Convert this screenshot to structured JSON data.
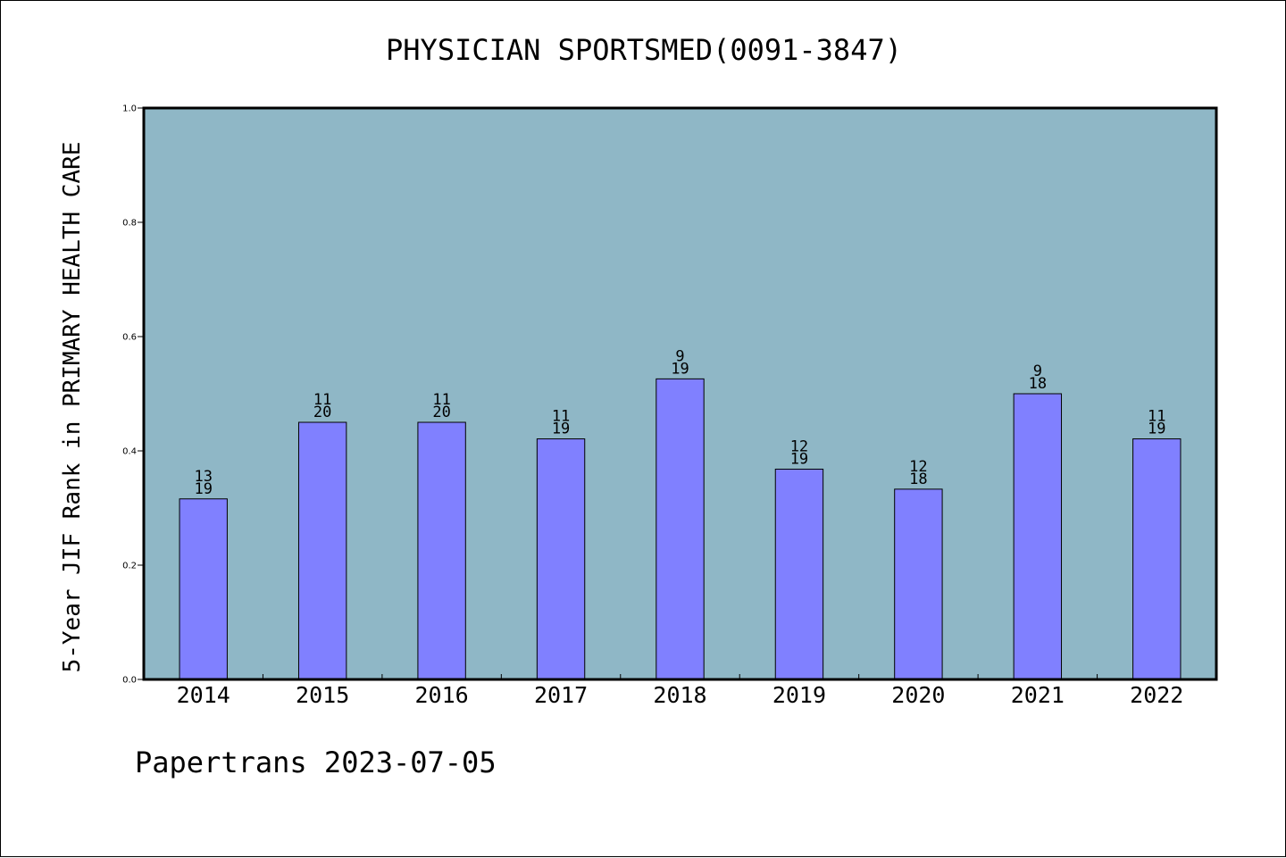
{
  "title": "PHYSICIAN SPORTSMED(0091-3847)",
  "ylabel": "5-Year JIF Rank in PRIMARY HEALTH CARE",
  "footer": "Papertrans 2023-07-05",
  "colors": {
    "plot_background": "#8fb7c6",
    "bar_fill": "#8080ff",
    "axis": "#000000"
  },
  "chart_data": {
    "type": "bar",
    "title": "PHYSICIAN SPORTSMED(0091-3847)",
    "xlabel": "",
    "ylabel": "5-Year JIF Rank in PRIMARY HEALTH CARE",
    "ylim": [
      0,
      1.0
    ],
    "yticks": [
      "0.0",
      "0.2",
      "0.4",
      "0.6",
      "0.8",
      "1.0"
    ],
    "grid": false,
    "categories": [
      "2014",
      "2015",
      "2016",
      "2017",
      "2018",
      "2019",
      "2020",
      "2021",
      "2022"
    ],
    "values": [
      0.316,
      0.45,
      0.45,
      0.421,
      0.526,
      0.368,
      0.333,
      0.5,
      0.421
    ],
    "labels": [
      {
        "top": "13",
        "bottom": "19"
      },
      {
        "top": "11",
        "bottom": "20"
      },
      {
        "top": "11",
        "bottom": "20"
      },
      {
        "top": "11",
        "bottom": "19"
      },
      {
        "top": "9",
        "bottom": "19"
      },
      {
        "top": "12",
        "bottom": "19"
      },
      {
        "top": "12",
        "bottom": "18"
      },
      {
        "top": "9",
        "bottom": "18"
      },
      {
        "top": "11",
        "bottom": "19"
      }
    ]
  }
}
